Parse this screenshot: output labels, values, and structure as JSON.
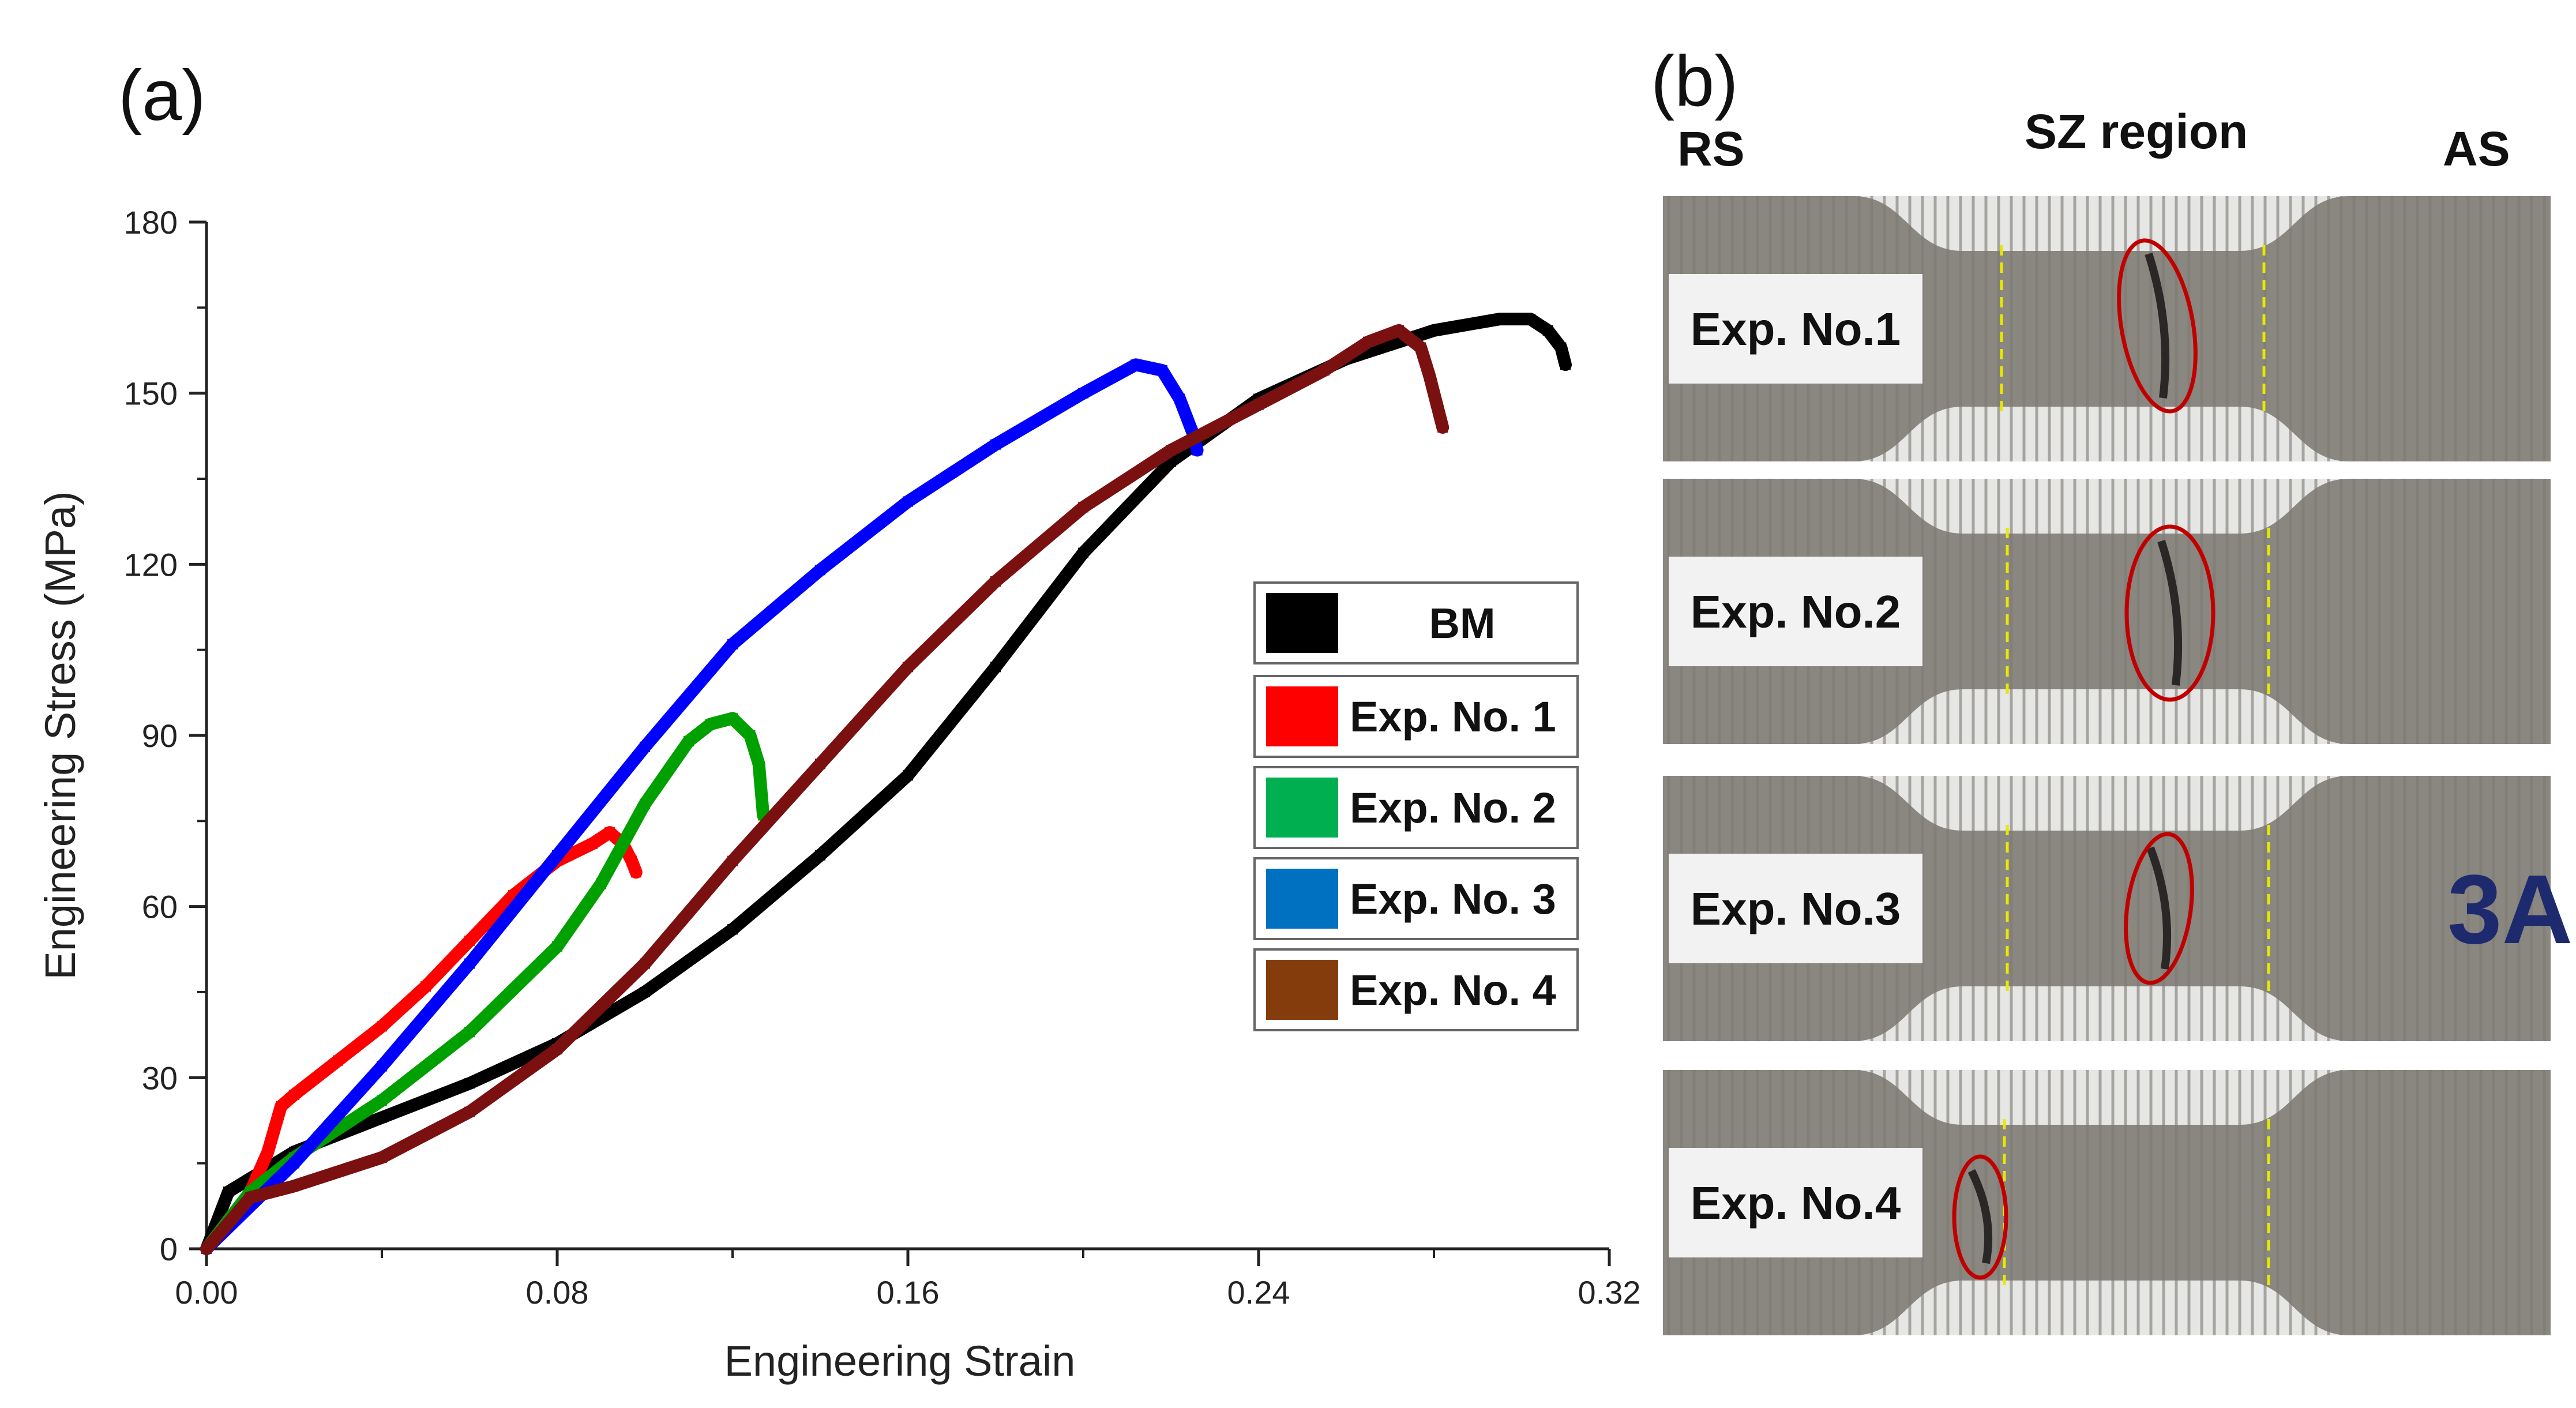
{
  "panel_a_label": "(a)",
  "panel_b_label": "(b)",
  "chart_data": {
    "type": "line",
    "xlabel": "Engineering Strain",
    "ylabel": "Engineering Stress (MPa)",
    "xlim": [
      0,
      0.32
    ],
    "ylim": [
      0,
      180
    ],
    "xticks": [
      "0.00",
      "0.08",
      "0.16",
      "0.24",
      "0.32"
    ],
    "yticks": [
      "0",
      "30",
      "60",
      "90",
      "120",
      "150",
      "180"
    ],
    "xtick_values": [
      0,
      0.08,
      0.16,
      0.24,
      0.32
    ],
    "ytick_values": [
      0,
      30,
      60,
      90,
      120,
      150,
      180
    ],
    "grid": false,
    "legend_position": "right",
    "series": [
      {
        "name": "BM",
        "color": "#000000",
        "x": [
          0,
          0.005,
          0.02,
          0.04,
          0.06,
          0.08,
          0.1,
          0.12,
          0.14,
          0.16,
          0.18,
          0.2,
          0.22,
          0.24,
          0.26,
          0.28,
          0.295,
          0.302,
          0.306,
          0.309,
          0.31
        ],
        "y": [
          0,
          10,
          17,
          23,
          29,
          36,
          45,
          56,
          69,
          83,
          102,
          122,
          138,
          149,
          156,
          161,
          163,
          163,
          161,
          158,
          155
        ]
      },
      {
        "name": "Exp. No. 1",
        "color": "#ff0000",
        "x": [
          0,
          0.01,
          0.014,
          0.017,
          0.02,
          0.03,
          0.04,
          0.05,
          0.06,
          0.07,
          0.08,
          0.088,
          0.092,
          0.095,
          0.097,
          0.098
        ],
        "y": [
          0,
          10,
          17,
          25,
          27,
          33,
          39,
          46,
          54,
          62,
          68,
          71,
          73,
          71,
          68,
          66
        ]
      },
      {
        "name": "Exp. No. 2",
        "color": "#00a000",
        "x": [
          0,
          0.01,
          0.02,
          0.04,
          0.06,
          0.08,
          0.09,
          0.1,
          0.11,
          0.115,
          0.12,
          0.124,
          0.126,
          0.127
        ],
        "y": [
          0,
          10,
          16,
          26,
          38,
          53,
          64,
          78,
          89,
          92,
          93,
          90,
          85,
          76
        ]
      },
      {
        "name": "Exp. No. 3",
        "color": "#0000ff",
        "x": [
          0,
          0.02,
          0.04,
          0.06,
          0.08,
          0.1,
          0.12,
          0.14,
          0.16,
          0.18,
          0.2,
          0.212,
          0.218,
          0.222,
          0.225,
          0.226
        ],
        "y": [
          0,
          15,
          32,
          50,
          69,
          88,
          106,
          119,
          131,
          141,
          150,
          155,
          154,
          149,
          143,
          140
        ]
      },
      {
        "name": "Exp. No. 4",
        "color": "#7a1010",
        "x": [
          0,
          0.01,
          0.02,
          0.04,
          0.06,
          0.08,
          0.1,
          0.12,
          0.14,
          0.16,
          0.18,
          0.2,
          0.22,
          0.24,
          0.255,
          0.265,
          0.272,
          0.277,
          0.279,
          0.281,
          0.282
        ],
        "y": [
          0,
          9,
          11,
          16,
          24,
          35,
          50,
          68,
          85,
          102,
          117,
          130,
          140,
          148,
          154,
          159,
          161,
          158,
          153,
          147,
          144
        ]
      }
    ]
  },
  "legend": {
    "items": [
      {
        "label": "BM",
        "color": "#000000"
      },
      {
        "label": "Exp. No. 1",
        "color": "#ff0000"
      },
      {
        "label": "Exp. No. 2",
        "color": "#00b050"
      },
      {
        "label": "Exp. No. 3",
        "color": "#0070c0"
      },
      {
        "label": "Exp. No. 4",
        "color": "#843c0c"
      }
    ]
  },
  "photos": {
    "rs_label": "RS",
    "sz_label": "SZ region",
    "as_label": "AS",
    "specimens": [
      {
        "label": "Exp. No.1"
      },
      {
        "label": "Exp. No.2"
      },
      {
        "label": "Exp. No.3",
        "marking": "3A"
      },
      {
        "label": "Exp. No.4"
      }
    ],
    "ellipse_color": "#c00000",
    "boundary_color": "#e8e800"
  }
}
